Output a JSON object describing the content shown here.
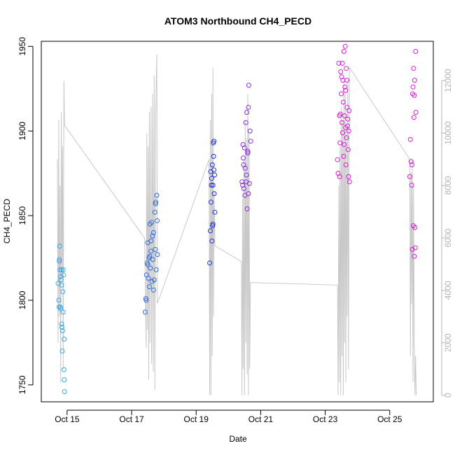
{
  "chart_data": {
    "type": "scatter",
    "title": "ATOM3 Northbound CH4_PECD",
    "xlabel": "Date",
    "ylabel": "CH4_PECD",
    "x_unit": "day of October",
    "xlim": [
      14.2,
      26.35
    ],
    "ylim": [
      1740,
      1953
    ],
    "y_ticks": [
      1750,
      1800,
      1850,
      1900,
      1950
    ],
    "x_ticks": [
      15,
      17,
      19,
      21,
      23,
      25
    ],
    "x_tick_labels": [
      "Oct 15",
      "Oct 17",
      "Oct 19",
      "Oct 21",
      "Oct 23",
      "Oct 25"
    ],
    "right_axis": {
      "ylim": [
        -250,
        13500
      ],
      "ticks": [
        0,
        2000,
        4000,
        6000,
        8000,
        10000,
        12000
      ],
      "tick_labels": [
        "0",
        "2000",
        "4000",
        "6000",
        "8000",
        "10000",
        "12000"
      ],
      "color": "#b4b4b4"
    },
    "grid": false,
    "legend": "none",
    "series": [
      {
        "color": "#3aa8e0",
        "points": [
          [
            14.72,
            1810
          ],
          [
            14.74,
            1800
          ],
          [
            14.75,
            1796
          ],
          [
            14.76,
            1823
          ],
          [
            14.77,
            1832
          ],
          [
            14.78,
            1818
          ],
          [
            14.79,
            1796
          ],
          [
            14.8,
            1814
          ],
          [
            14.81,
            1812
          ],
          [
            14.82,
            1818
          ],
          [
            14.83,
            1786
          ],
          [
            14.84,
            1784
          ],
          [
            14.85,
            1770
          ],
          [
            14.86,
            1782
          ],
          [
            14.87,
            1805
          ],
          [
            14.88,
            1793
          ],
          [
            14.88,
            1818
          ],
          [
            14.89,
            1815
          ],
          [
            14.9,
            1759
          ],
          [
            14.91,
            1777
          ],
          [
            14.91,
            1753
          ],
          [
            14.92,
            1746
          ],
          [
            14.76,
            1824
          ],
          [
            14.8,
            1795
          ],
          [
            14.83,
            1809
          ]
        ]
      },
      {
        "color": "#2f6be0",
        "points": [
          [
            17.42,
            1793
          ],
          [
            17.44,
            1801
          ],
          [
            17.46,
            1815
          ],
          [
            17.48,
            1822
          ],
          [
            17.5,
            1834
          ],
          [
            17.52,
            1813
          ],
          [
            17.54,
            1825
          ],
          [
            17.55,
            1808
          ],
          [
            17.57,
            1845
          ],
          [
            17.58,
            1819
          ],
          [
            17.6,
            1829
          ],
          [
            17.62,
            1846
          ],
          [
            17.63,
            1811
          ],
          [
            17.65,
            1838
          ],
          [
            17.66,
            1824
          ],
          [
            17.68,
            1840
          ],
          [
            17.7,
            1812
          ],
          [
            17.72,
            1852
          ],
          [
            17.73,
            1830
          ],
          [
            17.75,
            1858
          ],
          [
            17.76,
            1818
          ],
          [
            17.78,
            1862
          ],
          [
            17.79,
            1847
          ],
          [
            17.8,
            1827
          ],
          [
            17.5,
            1821
          ],
          [
            17.6,
            1835
          ],
          [
            17.68,
            1806
          ],
          [
            17.74,
            1857
          ],
          [
            17.45,
            1800
          ],
          [
            17.56,
            1826
          ]
        ]
      },
      {
        "color": "#1e2fd8",
        "points": [
          [
            19.42,
            1822
          ],
          [
            19.44,
            1841
          ],
          [
            19.45,
            1876
          ],
          [
            19.46,
            1858
          ],
          [
            19.48,
            1872
          ],
          [
            19.49,
            1835
          ],
          [
            19.5,
            1880
          ],
          [
            19.51,
            1844
          ],
          [
            19.52,
            1868
          ],
          [
            19.53,
            1893
          ],
          [
            19.54,
            1885
          ],
          [
            19.55,
            1894
          ],
          [
            19.56,
            1863
          ],
          [
            19.57,
            1874
          ],
          [
            19.58,
            1852
          ],
          [
            19.47,
            1868
          ],
          [
            19.52,
            1845
          ],
          [
            19.55,
            1877
          ]
        ]
      },
      {
        "color": "#8a2be2",
        "points": [
          [
            20.42,
            1870
          ],
          [
            20.45,
            1892
          ],
          [
            20.47,
            1880
          ],
          [
            20.48,
            1866
          ],
          [
            20.5,
            1890
          ],
          [
            20.52,
            1878
          ],
          [
            20.54,
            1905
          ],
          [
            20.56,
            1874
          ],
          [
            20.57,
            1911
          ],
          [
            20.58,
            1854
          ],
          [
            20.6,
            1887
          ],
          [
            20.62,
            1914
          ],
          [
            20.63,
            1927
          ],
          [
            20.65,
            1869
          ],
          [
            20.67,
            1900
          ],
          [
            20.69,
            1894
          ],
          [
            20.44,
            1868
          ],
          [
            20.51,
            1862
          ],
          [
            20.55,
            1870
          ],
          [
            20.6,
            1888
          ],
          [
            20.46,
            1884
          ],
          [
            20.62,
            1863
          ]
        ]
      },
      {
        "color": "#d61cd6",
        "points": [
          [
            23.38,
            1883
          ],
          [
            23.4,
            1875
          ],
          [
            23.42,
            1940
          ],
          [
            23.44,
            1909
          ],
          [
            23.45,
            1873
          ],
          [
            23.46,
            1893
          ],
          [
            23.48,
            1935
          ],
          [
            23.5,
            1922
          ],
          [
            23.52,
            1905
          ],
          [
            23.53,
            1940
          ],
          [
            23.54,
            1899
          ],
          [
            23.55,
            1930
          ],
          [
            23.56,
            1917
          ],
          [
            23.57,
            1885
          ],
          [
            23.58,
            1947
          ],
          [
            23.6,
            1909
          ],
          [
            23.61,
            1926
          ],
          [
            23.62,
            1950
          ],
          [
            23.63,
            1902
          ],
          [
            23.64,
            1880
          ],
          [
            23.65,
            1937
          ],
          [
            23.66,
            1896
          ],
          [
            23.67,
            1930
          ],
          [
            23.68,
            1914
          ],
          [
            23.7,
            1907
          ],
          [
            23.71,
            1889
          ],
          [
            23.72,
            1873
          ],
          [
            23.73,
            1900
          ],
          [
            23.74,
            1912
          ],
          [
            23.75,
            1870
          ],
          [
            23.47,
            1910
          ],
          [
            23.51,
            1932
          ],
          [
            23.59,
            1892
          ],
          [
            23.63,
            1924
          ],
          [
            23.69,
            1903
          ],
          [
            25.62,
            1873
          ],
          [
            25.64,
            1895
          ],
          [
            25.66,
            1882
          ],
          [
            25.68,
            1868
          ],
          [
            25.7,
            1830
          ],
          [
            25.72,
            1926
          ],
          [
            25.73,
            1844
          ],
          [
            25.74,
            1937
          ],
          [
            25.75,
            1908
          ],
          [
            25.76,
            1921
          ],
          [
            25.77,
            1930
          ],
          [
            25.78,
            1843
          ],
          [
            25.79,
            1831
          ],
          [
            25.8,
            1947
          ],
          [
            25.81,
            1911
          ],
          [
            25.69,
            1880
          ],
          [
            25.76,
            1826
          ],
          [
            25.71,
            1922
          ]
        ]
      }
    ],
    "line_series": {
      "color": "#c8c8c8",
      "axis": "right",
      "points": [
        [
          14.7,
          9000
        ],
        [
          14.72,
          2000
        ],
        [
          14.74,
          10500
        ],
        [
          14.76,
          3000
        ],
        [
          14.78,
          8000
        ],
        [
          14.8,
          500
        ],
        [
          14.82,
          10800
        ],
        [
          14.84,
          4500
        ],
        [
          14.86,
          9500
        ],
        [
          14.88,
          1000
        ],
        [
          14.9,
          12000
        ],
        [
          14.92,
          10300
        ],
        [
          17.4,
          6000
        ],
        [
          17.45,
          1800
        ],
        [
          17.47,
          10000
        ],
        [
          17.49,
          2500
        ],
        [
          17.51,
          9500
        ],
        [
          17.53,
          600
        ],
        [
          17.55,
          10800
        ],
        [
          17.57,
          2000
        ],
        [
          17.6,
          11000
        ],
        [
          17.62,
          1200
        ],
        [
          17.65,
          11500
        ],
        [
          17.67,
          900
        ],
        [
          17.7,
          12200
        ],
        [
          17.72,
          200
        ],
        [
          17.75,
          11000
        ],
        [
          17.78,
          13000
        ],
        [
          17.8,
          3500
        ],
        [
          19.4,
          9000
        ],
        [
          19.42,
          0
        ],
        [
          19.44,
          10500
        ],
        [
          19.46,
          0
        ],
        [
          19.48,
          11500
        ],
        [
          19.5,
          1500
        ],
        [
          19.52,
          12500
        ],
        [
          19.54,
          3000
        ],
        [
          19.56,
          7800
        ],
        [
          19.58,
          5700
        ],
        [
          20.4,
          5100
        ],
        [
          20.42,
          0
        ],
        [
          20.44,
          7500
        ],
        [
          20.46,
          1000
        ],
        [
          20.48,
          9000
        ],
        [
          20.5,
          0
        ],
        [
          20.52,
          10500
        ],
        [
          20.54,
          2000
        ],
        [
          20.56,
          9800
        ],
        [
          20.58,
          800
        ],
        [
          20.6,
          11500
        ],
        [
          20.62,
          0
        ],
        [
          20.64,
          10000
        ],
        [
          20.66,
          1000
        ],
        [
          20.68,
          4300
        ],
        [
          23.38,
          4200
        ],
        [
          23.4,
          0
        ],
        [
          23.42,
          8000
        ],
        [
          23.44,
          500
        ],
        [
          23.46,
          9500
        ],
        [
          23.48,
          0
        ],
        [
          23.5,
          11000
        ],
        [
          23.52,
          1500
        ],
        [
          23.54,
          10500
        ],
        [
          23.56,
          0
        ],
        [
          23.58,
          12000
        ],
        [
          23.6,
          2000
        ],
        [
          23.62,
          11500
        ],
        [
          23.64,
          500
        ],
        [
          23.66,
          10000
        ],
        [
          23.68,
          3000
        ],
        [
          23.7,
          12000
        ],
        [
          23.72,
          1000
        ],
        [
          23.75,
          12500
        ],
        [
          25.62,
          9000
        ],
        [
          25.64,
          1500
        ],
        [
          25.66,
          8500
        ],
        [
          25.68,
          3500
        ],
        [
          25.7,
          9000
        ],
        [
          25.72,
          500
        ],
        [
          25.74,
          8000
        ],
        [
          25.76,
          2000
        ],
        [
          25.78,
          0
        ],
        [
          25.8,
          1500
        ],
        [
          25.82,
          0
        ]
      ]
    }
  }
}
